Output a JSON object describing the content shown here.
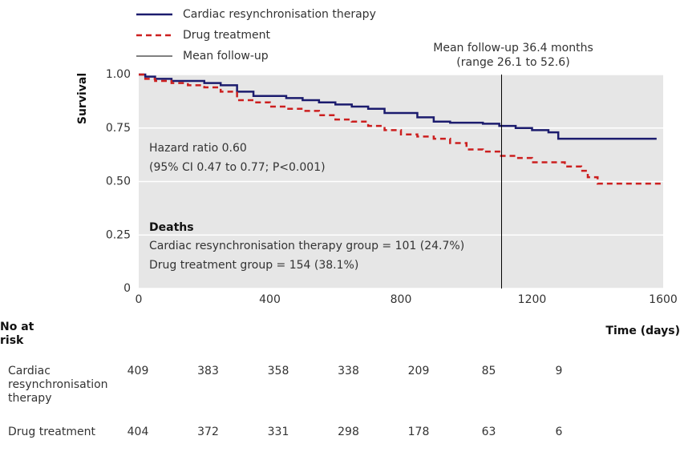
{
  "chart_data": {
    "type": "step",
    "y_label": "Survival",
    "x_label": "Time (days)",
    "xlim": [
      0,
      1600
    ],
    "xticks": [
      0,
      400,
      800,
      1200,
      1600
    ],
    "ylim": [
      0,
      1
    ],
    "yticks": [
      {
        "value": 0,
        "label": "0"
      },
      {
        "value": 0.25,
        "label": "0.25"
      },
      {
        "value": 0.5,
        "label": "0.50"
      },
      {
        "value": 0.75,
        "label": "0.75"
      },
      {
        "value": 1,
        "label": "1.00"
      }
    ],
    "grid": true,
    "x": [
      0,
      20,
      50,
      100,
      150,
      200,
      250,
      300,
      350,
      400,
      450,
      500,
      550,
      600,
      650,
      700,
      750,
      800,
      850,
      900,
      950,
      1000,
      1050,
      1100,
      1150,
      1200,
      1250,
      1280,
      1300,
      1350,
      1370,
      1400,
      1580,
      1600
    ],
    "series": [
      {
        "name": "Cardiac resynchronisation therapy",
        "color": "#1c1c6e",
        "dash": "solid",
        "values": [
          1,
          0.99,
          0.98,
          0.97,
          0.97,
          0.96,
          0.95,
          0.92,
          0.9,
          0.9,
          0.89,
          0.88,
          0.87,
          0.86,
          0.85,
          0.84,
          0.82,
          0.82,
          0.8,
          0.78,
          0.775,
          0.775,
          0.77,
          0.76,
          0.75,
          0.74,
          0.73,
          0.7,
          0.7,
          0.7,
          0.7,
          0.7,
          0.7,
          null
        ]
      },
      {
        "name": "Drug treatment",
        "color": "#cc1f1f",
        "dash": "dashed",
        "values": [
          1,
          0.98,
          0.97,
          0.96,
          0.95,
          0.94,
          0.92,
          0.88,
          0.87,
          0.85,
          0.84,
          0.83,
          0.81,
          0.79,
          0.78,
          0.76,
          0.74,
          0.72,
          0.71,
          0.7,
          0.68,
          0.65,
          0.64,
          0.62,
          0.61,
          0.59,
          0.59,
          0.59,
          0.57,
          0.55,
          0.52,
          0.49,
          0.49,
          0.49
        ]
      }
    ],
    "reference_line": {
      "name": "Mean follow-up",
      "x": 1107,
      "color": "#000000",
      "label_lines": [
        "Mean follow-up 36.4 months",
        "(range 26.1 to 52.6)"
      ]
    },
    "annotations": {
      "hazard": [
        "Hazard ratio 0.60",
        "(95% CI 0.47 to 0.77; P<0.001)"
      ],
      "deaths_title": "Deaths",
      "deaths": [
        "Cardiac resynchronisation therapy group = 101 (24.7%)",
        "Drug treatment group = 154 (38.1%)"
      ]
    },
    "risk_table": {
      "title": "No at risk",
      "rows": [
        {
          "label": "Cardiac resynchronisation therapy",
          "values": [
            409,
            383,
            358,
            338,
            209,
            85,
            9
          ]
        },
        {
          "label": "Drug treatment",
          "values": [
            404,
            372,
            331,
            298,
            178,
            63,
            6
          ]
        }
      ]
    }
  }
}
